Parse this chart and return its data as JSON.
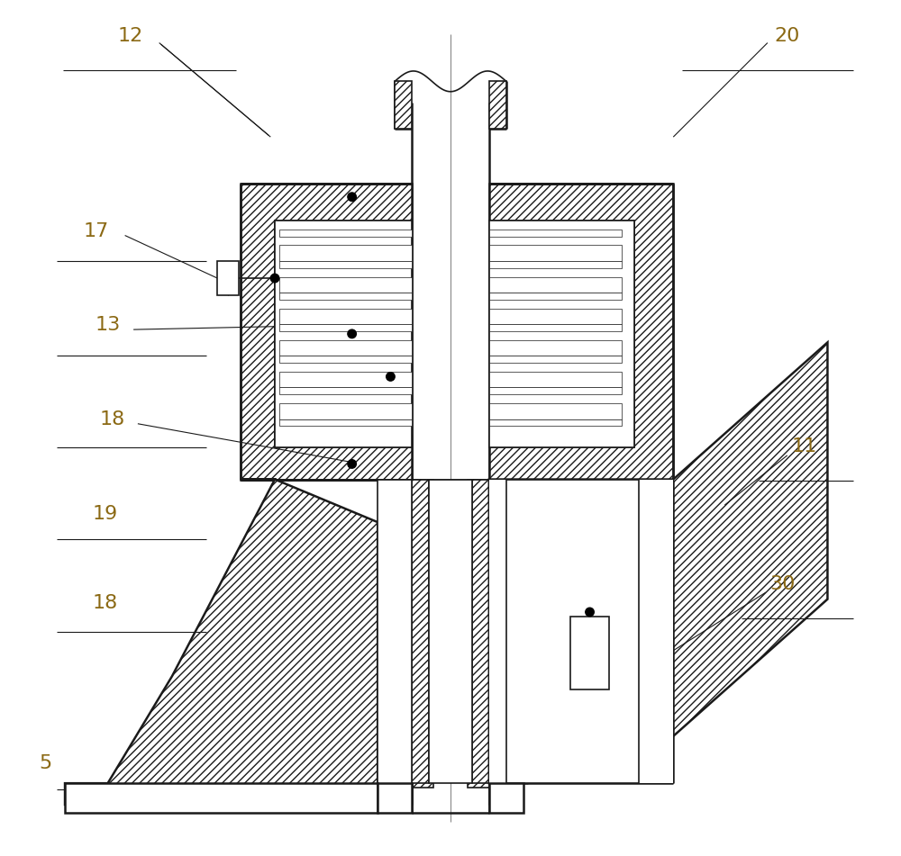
{
  "bg_color": "#ffffff",
  "line_color": "#1a1a1a",
  "label_color": "#8B6914",
  "figsize": [
    10.0,
    9.51
  ],
  "dpi": 100,
  "lw_thin": 0.8,
  "lw_med": 1.2,
  "lw_thick": 1.8
}
